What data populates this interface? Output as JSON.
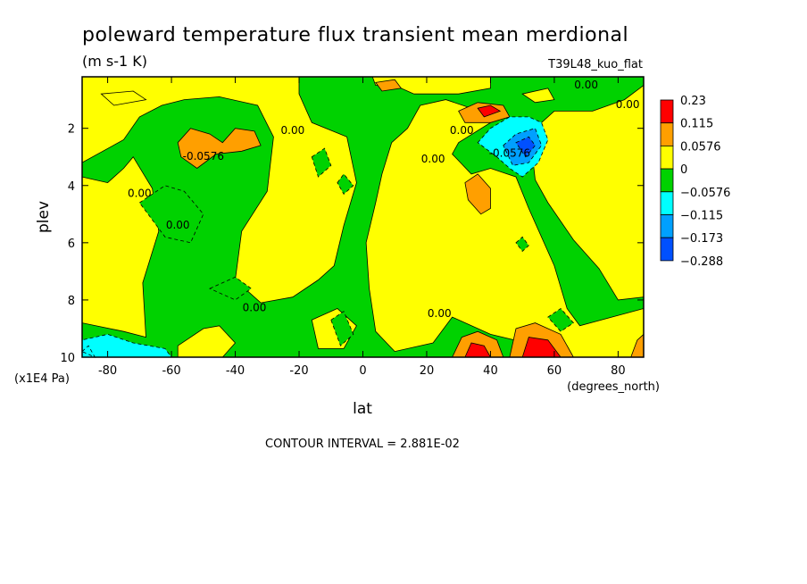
{
  "chart_data": {
    "type": "heatmap",
    "title": "poleward temperature flux transient mean merdional",
    "units": "(m s-1 K)",
    "run_label": "T39L48_kuo_flat",
    "xlabel": "lat",
    "x_unit_note": "(degrees_north)",
    "ylabel": "plev",
    "y_unit_note": "(x1E4 Pa)",
    "x_ticks": [
      "-80",
      "-60",
      "-40",
      "-20",
      "0",
      "20",
      "40",
      "60",
      "80"
    ],
    "x_tick_values": [
      -80,
      -60,
      -40,
      -20,
      0,
      20,
      40,
      60,
      80
    ],
    "y_ticks": [
      "2",
      "4",
      "6",
      "8",
      "10"
    ],
    "y_tick_values": [
      2,
      4,
      6,
      8,
      10
    ],
    "xlim": [
      -88,
      88
    ],
    "ylim": [
      0.2,
      10
    ],
    "y_inverted": true,
    "contour_interval_text": "CONTOUR INTERVAL = 2.881E-02",
    "legend": [
      {
        "label": "0.23",
        "color": "#ff0000"
      },
      {
        "label": "0.115",
        "color": "#ff9f00"
      },
      {
        "label": "0.0576",
        "color": "#ffff00"
      },
      {
        "label": "0",
        "color": "#00d200"
      },
      {
        "label": "−0.0576",
        "color": "#00ffff"
      },
      {
        "label": "−0.115",
        "color": "#00a0ff"
      },
      {
        "label": "−0.173",
        "color": "#0050ff"
      },
      {
        "label": "−0.288",
        "color": ""
      }
    ],
    "contour_labels": [
      {
        "text": "0.00",
        "lat": -22,
        "plev": 2.2
      },
      {
        "text": "-0.0576",
        "lat": -50,
        "plev": 3.1
      },
      {
        "text": "0.00",
        "lat": -70,
        "plev": 4.4
      },
      {
        "text": "0.00",
        "lat": -58,
        "plev": 5.5
      },
      {
        "text": "0.00",
        "lat": -34,
        "plev": 8.4
      },
      {
        "text": "0.00",
        "lat": 24,
        "plev": 8.6
      },
      {
        "text": "0.00",
        "lat": 31,
        "plev": 2.2
      },
      {
        "text": "0.00",
        "lat": 22,
        "plev": 3.2
      },
      {
        "text": "-0.0576",
        "lat": 46,
        "plev": 3.0
      },
      {
        "text": "0.00",
        "lat": 70,
        "plev": 0.6
      },
      {
        "text": "0.00",
        "lat": 83,
        "plev": 1.3
      }
    ],
    "regions": [
      {
        "level": "positive",
        "color": "#ffff00",
        "pts": [
          [
            -88,
            0.2
          ],
          [
            -88,
            3.2
          ],
          [
            -75,
            2.4
          ],
          [
            -70,
            1.6
          ],
          [
            -63,
            1.2
          ],
          [
            -56,
            1.0
          ],
          [
            -45,
            0.9
          ],
          [
            -33,
            1.2
          ],
          [
            -28,
            2.3
          ],
          [
            -30,
            4.2
          ],
          [
            -38,
            5.6
          ],
          [
            -40,
            7.3
          ],
          [
            -32,
            8.1
          ],
          [
            -22,
            7.9
          ],
          [
            -14,
            7.3
          ],
          [
            -9,
            6.8
          ],
          [
            -6,
            5.4
          ],
          [
            -2,
            3.9
          ],
          [
            -5,
            2.3
          ],
          [
            -16,
            1.8
          ],
          [
            -20,
            0.8
          ],
          [
            -20,
            0.2
          ]
        ]
      },
      {
        "level": "positive",
        "color": "#ffff00",
        "pts": [
          [
            -88,
            3.7
          ],
          [
            -80,
            3.9
          ],
          [
            -75,
            3.4
          ],
          [
            -72,
            3.0
          ],
          [
            -66,
            4.1
          ],
          [
            -64,
            5.6
          ],
          [
            -69,
            7.4
          ],
          [
            -68,
            9.3
          ],
          [
            -75,
            9.1
          ],
          [
            -88,
            8.8
          ]
        ]
      },
      {
        "level": "positive",
        "color": "#ffff00",
        "pts": [
          [
            -58,
            9.6
          ],
          [
            -50,
            9.0
          ],
          [
            -45,
            8.9
          ],
          [
            -40,
            9.5
          ],
          [
            -44,
            10
          ],
          [
            -58,
            10
          ]
        ]
      },
      {
        "level": "positive",
        "color": "#ffff00",
        "pts": [
          [
            -16,
            8.7
          ],
          [
            -8,
            8.3
          ],
          [
            -2,
            8.9
          ],
          [
            -6,
            9.7
          ],
          [
            -14,
            9.7
          ]
        ]
      },
      {
        "level": "positive",
        "color": "#ffff00",
        "pts": [
          [
            1,
            6.0
          ],
          [
            4,
            4.6
          ],
          [
            6,
            3.6
          ],
          [
            9,
            2.5
          ],
          [
            14,
            2.0
          ],
          [
            18,
            1.2
          ],
          [
            26,
            1.0
          ],
          [
            34,
            1.3
          ],
          [
            40,
            1.8
          ],
          [
            30,
            2.5
          ],
          [
            28,
            2.9
          ],
          [
            34,
            3.6
          ],
          [
            40,
            3.4
          ],
          [
            48,
            3.7
          ],
          [
            52,
            4.8
          ],
          [
            60,
            6.8
          ],
          [
            64,
            8.3
          ],
          [
            68,
            8.9
          ],
          [
            78,
            8.6
          ],
          [
            88,
            8.3
          ],
          [
            88,
            10
          ],
          [
            70,
            10
          ],
          [
            64,
            10
          ],
          [
            55,
            9.6
          ],
          [
            40,
            9.2
          ],
          [
            28,
            8.6
          ],
          [
            22,
            9.5
          ],
          [
            10,
            9.8
          ],
          [
            4,
            9.1
          ],
          [
            2,
            7.6
          ]
        ]
      },
      {
        "level": "positive",
        "color": "#ffff00",
        "pts": [
          [
            3,
            0.2
          ],
          [
            40,
            0.2
          ],
          [
            40,
            0.6
          ],
          [
            30,
            0.8
          ],
          [
            16,
            0.8
          ],
          [
            10,
            0.5
          ],
          [
            4,
            0.5
          ]
        ]
      },
      {
        "level": "positive",
        "color": "#ffff00",
        "pts": [
          [
            53,
            2.8
          ],
          [
            56,
            1.8
          ],
          [
            60,
            1.4
          ],
          [
            72,
            1.4
          ],
          [
            82,
            1.0
          ],
          [
            88,
            0.5
          ],
          [
            88,
            7.9
          ],
          [
            80,
            8.0
          ],
          [
            74,
            6.9
          ],
          [
            66,
            5.9
          ],
          [
            58,
            4.6
          ],
          [
            54,
            3.8
          ]
        ]
      },
      {
        "level": "positive",
        "color": "#ffff00",
        "pts": [
          [
            50,
            0.8
          ],
          [
            58,
            0.6
          ],
          [
            60,
            1.0
          ],
          [
            54,
            1.1
          ]
        ]
      },
      {
        "level": "positive",
        "color": "#ffff00",
        "pts": [
          [
            -82,
            0.8
          ],
          [
            -72,
            0.7
          ],
          [
            -68,
            1.0
          ],
          [
            -78,
            1.2
          ]
        ]
      },
      {
        "level": "negative",
        "color": "#00d200",
        "pts": [
          [
            -70,
            4.6
          ],
          [
            -62,
            4.0
          ],
          [
            -56,
            4.2
          ],
          [
            -50,
            5.0
          ],
          [
            -54,
            6.0
          ],
          [
            -62,
            5.8
          ]
        ]
      },
      {
        "level": "negative",
        "color": "#00d200",
        "pts": [
          [
            -16,
            3.0
          ],
          [
            -12,
            2.7
          ],
          [
            -10,
            3.3
          ],
          [
            -14,
            3.7
          ]
        ]
      },
      {
        "level": "negative",
        "color": "#00d200",
        "pts": [
          [
            -8,
            3.9
          ],
          [
            -6,
            3.6
          ],
          [
            -3,
            4.0
          ],
          [
            -6,
            4.3
          ]
        ]
      },
      {
        "level": "negative",
        "color": "#00d200",
        "pts": [
          [
            -48,
            7.6
          ],
          [
            -40,
            7.2
          ],
          [
            -35,
            7.6
          ],
          [
            -40,
            8.0
          ]
        ]
      },
      {
        "level": "negative",
        "color": "#00d200",
        "pts": [
          [
            -10,
            8.7
          ],
          [
            -6,
            8.4
          ],
          [
            -3,
            9.2
          ],
          [
            -7,
            9.6
          ]
        ]
      },
      {
        "level": "negative",
        "color": "#00d200",
        "pts": [
          [
            58,
            8.6
          ],
          [
            62,
            8.3
          ],
          [
            66,
            8.8
          ],
          [
            62,
            9.1
          ]
        ]
      },
      {
        "level": "negative",
        "color": "#00d200",
        "pts": [
          [
            48,
            6.0
          ],
          [
            50,
            5.8
          ],
          [
            52,
            6.1
          ],
          [
            50,
            6.3
          ]
        ]
      },
      {
        "level": "positive",
        "color": "#ff9f00",
        "pts": [
          [
            -58,
            2.5
          ],
          [
            -54,
            2.0
          ],
          [
            -48,
            2.2
          ],
          [
            -44,
            2.5
          ],
          [
            -40,
            2.0
          ],
          [
            -34,
            2.1
          ],
          [
            -32,
            2.6
          ],
          [
            -38,
            2.8
          ],
          [
            -46,
            2.9
          ],
          [
            -52,
            3.4
          ],
          [
            -57,
            3.0
          ]
        ]
      },
      {
        "level": "positive",
        "color": "#ff9f00",
        "pts": [
          [
            32,
            3.9
          ],
          [
            36,
            3.6
          ],
          [
            40,
            4.1
          ],
          [
            40,
            4.8
          ],
          [
            37,
            5.0
          ],
          [
            33,
            4.5
          ]
        ]
      },
      {
        "level": "positive",
        "color": "#ff9f00",
        "pts": [
          [
            30,
            1.4
          ],
          [
            36,
            1.1
          ],
          [
            44,
            1.2
          ],
          [
            46,
            1.6
          ],
          [
            40,
            1.8
          ],
          [
            32,
            1.8
          ]
        ]
      },
      {
        "level": "positive",
        "color": "#ff9f00",
        "pts": [
          [
            4,
            0.4
          ],
          [
            10,
            0.3
          ],
          [
            12,
            0.6
          ],
          [
            6,
            0.7
          ]
        ]
      },
      {
        "level": "positive",
        "color": "#ff9f00",
        "pts": [
          [
            28,
            10
          ],
          [
            31,
            9.3
          ],
          [
            36,
            9.1
          ],
          [
            42,
            9.4
          ],
          [
            44,
            10
          ]
        ]
      },
      {
        "level": "positive",
        "color": "#ff9f00",
        "pts": [
          [
            46,
            10
          ],
          [
            48,
            9.0
          ],
          [
            54,
            8.8
          ],
          [
            62,
            9.2
          ],
          [
            66,
            10
          ]
        ]
      },
      {
        "level": "positive",
        "color": "#ff9f00",
        "pts": [
          [
            84,
            10
          ],
          [
            86,
            9.4
          ],
          [
            88,
            9.2
          ],
          [
            88,
            10
          ]
        ]
      },
      {
        "level": "positive",
        "color": "#ff0000",
        "pts": [
          [
            32,
            10
          ],
          [
            34,
            9.5
          ],
          [
            38,
            9.6
          ],
          [
            40,
            10
          ]
        ]
      },
      {
        "level": "positive",
        "color": "#ff0000",
        "pts": [
          [
            50,
            10
          ],
          [
            52,
            9.3
          ],
          [
            58,
            9.4
          ],
          [
            62,
            10
          ]
        ]
      },
      {
        "level": "positive",
        "color": "#ff0000",
        "pts": [
          [
            36,
            1.3
          ],
          [
            40,
            1.2
          ],
          [
            43,
            1.4
          ],
          [
            38,
            1.6
          ]
        ]
      },
      {
        "level": "negative",
        "color": "#00ffff",
        "pts": [
          [
            36,
            2.5
          ],
          [
            40,
            2.0
          ],
          [
            46,
            1.6
          ],
          [
            52,
            1.6
          ],
          [
            56,
            1.8
          ],
          [
            58,
            2.4
          ],
          [
            55,
            3.2
          ],
          [
            50,
            3.7
          ],
          [
            46,
            3.4
          ],
          [
            42,
            3.0
          ]
        ]
      },
      {
        "level": "negative",
        "color": "#00a0ff",
        "pts": [
          [
            44,
            2.6
          ],
          [
            48,
            2.2
          ],
          [
            54,
            2.0
          ],
          [
            56,
            2.6
          ],
          [
            52,
            3.2
          ],
          [
            47,
            3.3
          ]
        ]
      },
      {
        "level": "negative",
        "color": "#0050ff",
        "pts": [
          [
            48,
            2.5
          ],
          [
            52,
            2.3
          ],
          [
            54,
            2.6
          ],
          [
            51,
            3.0
          ]
        ]
      },
      {
        "level": "negative",
        "color": "#00ffff",
        "pts": [
          [
            -88,
            10
          ],
          [
            -88,
            9.4
          ],
          [
            -80,
            9.2
          ],
          [
            -72,
            9.5
          ],
          [
            -62,
            9.7
          ],
          [
            -60,
            10
          ]
        ]
      },
      {
        "level": "negative",
        "color": "#00ffff",
        "pts": [
          [
            -88,
            9.8
          ],
          [
            -86,
            9.6
          ],
          [
            -84,
            10
          ]
        ]
      }
    ]
  }
}
